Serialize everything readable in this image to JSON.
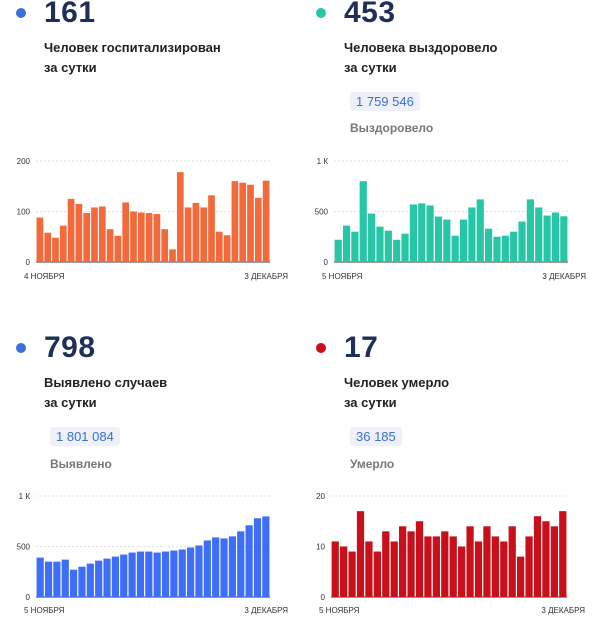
{
  "panels": [
    {
      "id": "hosp",
      "color": "#f26a3c",
      "dot_color": "#3b6fd3",
      "big_value": "161",
      "label_line1": "Человек госпитализирован",
      "label_line2": "за сутки",
      "total": "",
      "total_label": ""
    },
    {
      "id": "recov",
      "color": "#26c6a6",
      "dot_color": "#26c6a6",
      "big_value": "453",
      "label_line1": "Человека выздоровело",
      "label_line2": "за сутки",
      "total": "1 759 546",
      "total_label": "Выздоровело"
    },
    {
      "id": "cases",
      "color": "#3d6ef5",
      "dot_color": "#3b6fd3",
      "big_value": "798",
      "label_line1": "Выявлено случаев",
      "label_line2": "за сутки",
      "total": "1 801 084",
      "total_label": "Выявлено"
    },
    {
      "id": "deaths",
      "color": "#c8101a",
      "dot_color": "#c8101a",
      "big_value": "17",
      "label_line1": "Человек умерло",
      "label_line2": "за сутки",
      "total": "36 185",
      "total_label": "Умерло"
    }
  ],
  "chart_data": [
    {
      "type": "bar",
      "title": "Человек госпитализирован за сутки",
      "x_start_label": "4 НОЯБРЯ",
      "x_end_label": "3 ДЕКАБРЯ",
      "y_ticks": [
        "0",
        "100",
        "200"
      ],
      "ylim": [
        0,
        200
      ],
      "values": [
        88,
        58,
        48,
        72,
        125,
        115,
        97,
        108,
        110,
        65,
        52,
        118,
        100,
        98,
        97,
        95,
        65,
        25,
        178,
        108,
        117,
        108,
        132,
        60,
        53,
        160,
        157,
        153,
        127,
        161
      ]
    },
    {
      "type": "bar",
      "title": "Человека выздоровело за сутки",
      "x_start_label": "5 НОЯБРЯ",
      "x_end_label": "3 ДЕКАБРЯ",
      "y_ticks": [
        "0",
        "500",
        "1 К"
      ],
      "ylim": [
        0,
        1000
      ],
      "values": [
        220,
        360,
        300,
        800,
        480,
        350,
        310,
        220,
        280,
        570,
        580,
        560,
        450,
        420,
        260,
        420,
        540,
        620,
        330,
        250,
        260,
        300,
        400,
        620,
        540,
        460,
        490,
        453
      ]
    },
    {
      "type": "bar",
      "title": "Выявлено случаев за сутки",
      "x_start_label": "5 НОЯБРЯ",
      "x_end_label": "3 ДЕКАБРЯ",
      "y_ticks": [
        "0",
        "500",
        "1 К"
      ],
      "ylim": [
        0,
        1000
      ],
      "values": [
        390,
        350,
        350,
        370,
        270,
        300,
        330,
        360,
        380,
        400,
        420,
        440,
        450,
        450,
        440,
        450,
        460,
        470,
        490,
        510,
        560,
        590,
        580,
        600,
        650,
        710,
        780,
        798
      ]
    },
    {
      "type": "bar",
      "title": "Человек умерло за сутки",
      "x_start_label": "5 НОЯБРЯ",
      "x_end_label": "3 ДЕКАБРЯ",
      "y_ticks": [
        "0",
        "10",
        "20"
      ],
      "ylim": [
        0,
        20
      ],
      "values": [
        11,
        10,
        9,
        17,
        11,
        9,
        13,
        11,
        14,
        13,
        15,
        12,
        12,
        13,
        12,
        10,
        14,
        11,
        14,
        12,
        11,
        14,
        8,
        12,
        16,
        15,
        14,
        17
      ]
    }
  ]
}
